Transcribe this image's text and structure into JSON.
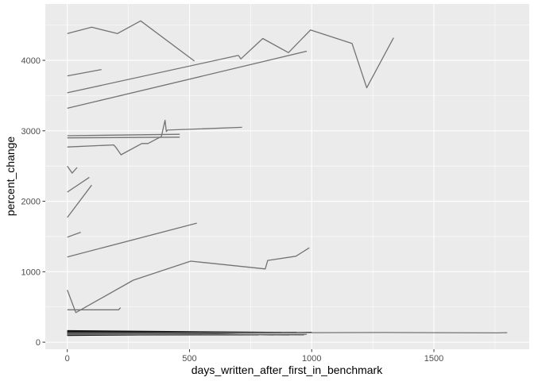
{
  "chart_data": {
    "type": "line",
    "title": "",
    "xlabel": "days_written_after_first_in_benchmark",
    "ylabel": "percent_change",
    "xlim": [
      -90,
      1890
    ],
    "ylim": [
      -100,
      4800
    ],
    "x_ticks": [
      0,
      500,
      1000,
      1500
    ],
    "x_tick_labels": [
      "0",
      "500",
      "1000",
      "1500"
    ],
    "y_ticks": [
      0,
      1000,
      2000,
      3000,
      4000
    ],
    "y_tick_labels": [
      "0",
      "1000",
      "2000",
      "3000",
      "4000"
    ],
    "grid": true,
    "legend": "none",
    "colors": {
      "panel": "#ebebeb",
      "grid": "#ffffff",
      "line": "#737373",
      "dense_line": "#1a1a1a"
    },
    "series": [
      {
        "x": [
          0,
          100,
          205,
          300,
          520
        ],
        "y": [
          4380,
          4470,
          4380,
          4560,
          3990
        ]
      },
      {
        "x": [
          700,
          710,
          800,
          905,
          995,
          1165,
          1225,
          1335
        ],
        "y": [
          4070,
          4020,
          4310,
          4110,
          4430,
          4240,
          3610,
          4320
        ]
      },
      {
        "x": [
          0,
          140
        ],
        "y": [
          3780,
          3870
        ]
      },
      {
        "x": [
          0,
          700
        ],
        "y": [
          3540,
          4070
        ]
      },
      {
        "x": [
          0,
          980
        ],
        "y": [
          3320,
          4130
        ]
      },
      {
        "x": [
          0,
          460
        ],
        "y": [
          2930,
          2950
        ]
      },
      {
        "x": [
          0,
          460
        ],
        "y": [
          2900,
          2910
        ]
      },
      {
        "x": [
          0,
          190,
          200,
          220,
          305,
          330,
          385,
          400,
          405,
          410,
          715
        ],
        "y": [
          2770,
          2800,
          2760,
          2660,
          2820,
          2820,
          2920,
          3150,
          2990,
          3010,
          3050
        ]
      },
      {
        "x": [
          0,
          20,
          40
        ],
        "y": [
          2500,
          2400,
          2480
        ]
      },
      {
        "x": [
          0,
          90
        ],
        "y": [
          2130,
          2340
        ]
      },
      {
        "x": [
          0,
          100
        ],
        "y": [
          1770,
          2230
        ]
      },
      {
        "x": [
          0,
          55
        ],
        "y": [
          1490,
          1560
        ]
      },
      {
        "x": [
          0,
          530
        ],
        "y": [
          1210,
          1690
        ]
      },
      {
        "x": [
          270,
          505,
          810,
          820,
          935,
          990
        ],
        "y": [
          880,
          1150,
          1040,
          1160,
          1220,
          1340
        ]
      },
      {
        "x": [
          0,
          35,
          270
        ],
        "y": [
          740,
          420,
          880
        ]
      },
      {
        "x": [
          0,
          210,
          218
        ],
        "y": [
          460,
          460,
          490
        ]
      },
      {
        "x": [
          0,
          300,
          600,
          1000,
          1300,
          1760,
          1800
        ],
        "y": [
          130,
          128,
          132,
          135,
          138,
          132,
          135
        ]
      },
      {
        "x": [
          0,
          980
        ],
        "y": [
          110,
          112
        ]
      }
    ],
    "dense_band": {
      "x_range": [
        0,
        1000
      ],
      "y_range": [
        95,
        165
      ]
    }
  }
}
